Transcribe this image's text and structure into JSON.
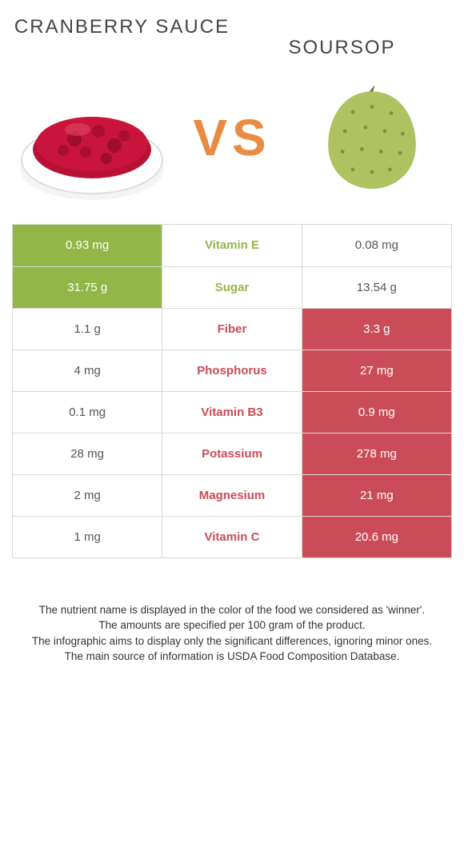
{
  "header": {
    "left_title": "CRANBERRY SAUCE",
    "right_title": "SOURSOP",
    "vs_label": "VS"
  },
  "colors": {
    "left_winner": "#93b648",
    "right_winner": "#cb4c59",
    "vs": "#ea8b44"
  },
  "rows": [
    {
      "nutrient": "Vitamin E",
      "left": "0.93 mg",
      "right": "0.08 mg",
      "winner": "left"
    },
    {
      "nutrient": "Sugar",
      "left": "31.75 g",
      "right": "13.54 g",
      "winner": "left"
    },
    {
      "nutrient": "Fiber",
      "left": "1.1 g",
      "right": "3.3 g",
      "winner": "right"
    },
    {
      "nutrient": "Phosphorus",
      "left": "4 mg",
      "right": "27 mg",
      "winner": "right"
    },
    {
      "nutrient": "Vitamin B3",
      "left": "0.1 mg",
      "right": "0.9 mg",
      "winner": "right"
    },
    {
      "nutrient": "Potassium",
      "left": "28 mg",
      "right": "278 mg",
      "winner": "right"
    },
    {
      "nutrient": "Magnesium",
      "left": "2 mg",
      "right": "21 mg",
      "winner": "right"
    },
    {
      "nutrient": "Vitamin C",
      "left": "1 mg",
      "right": "20.6 mg",
      "winner": "right"
    }
  ],
  "notes": {
    "line1": "The nutrient name is displayed in the color of the food we considered as 'winner'.",
    "line2": "The amounts are specified per 100 gram of the product.",
    "line3": "The infographic aims to display only the significant differences, ignoring minor ones.",
    "line4": "The main source of information is USDA Food Composition Database."
  }
}
